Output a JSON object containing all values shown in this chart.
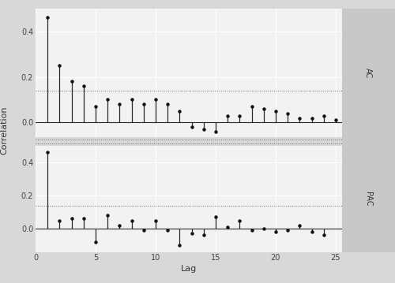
{
  "ac_values": [
    0.46,
    0.25,
    0.18,
    0.16,
    0.07,
    0.1,
    0.08,
    0.1,
    0.08,
    0.1,
    0.08,
    0.05,
    -0.02,
    -0.03,
    -0.04,
    0.03,
    0.03,
    0.07,
    0.06,
    0.05,
    0.04,
    0.02,
    0.02,
    0.03,
    0.01
  ],
  "pac_values": [
    0.46,
    0.05,
    0.06,
    0.06,
    -0.08,
    0.08,
    0.02,
    0.05,
    -0.01,
    0.05,
    -0.01,
    -0.1,
    -0.03,
    -0.04,
    0.07,
    0.01,
    0.05,
    -0.01,
    0.0,
    -0.02,
    -0.01,
    0.02,
    -0.02,
    -0.04
  ],
  "lags_ac": [
    1,
    2,
    3,
    4,
    5,
    6,
    7,
    8,
    9,
    10,
    11,
    12,
    13,
    14,
    15,
    16,
    17,
    18,
    19,
    20,
    21,
    22,
    23,
    24,
    25
  ],
  "lags_pac": [
    1,
    2,
    3,
    4,
    5,
    6,
    7,
    8,
    9,
    10,
    11,
    12,
    13,
    14,
    15,
    16,
    17,
    18,
    19,
    20,
    21,
    22,
    23,
    24
  ],
  "ci_upper": 0.14,
  "ci_lower": -0.14,
  "background_color": "#d8d8d8",
  "plot_bg_color": "#f2f2f2",
  "strip_bg_color": "#c8c8c8",
  "line_color": "#2a2a2a",
  "dot_color": "#111111",
  "ci_color": "#666666",
  "ylabel": "Correlation",
  "xlabel": "Lag",
  "label_ac": "AC",
  "label_pac": "PAC",
  "xlim": [
    0,
    25.5
  ],
  "ylim_ac": [
    -0.065,
    0.5
  ],
  "ylim_pac": [
    -0.14,
    0.5
  ],
  "yticks_ac": [
    0.0,
    0.2,
    0.4
  ],
  "yticks_pac": [
    0.0,
    0.2,
    0.4
  ],
  "xticks": [
    0,
    5,
    10,
    15,
    20,
    25
  ]
}
